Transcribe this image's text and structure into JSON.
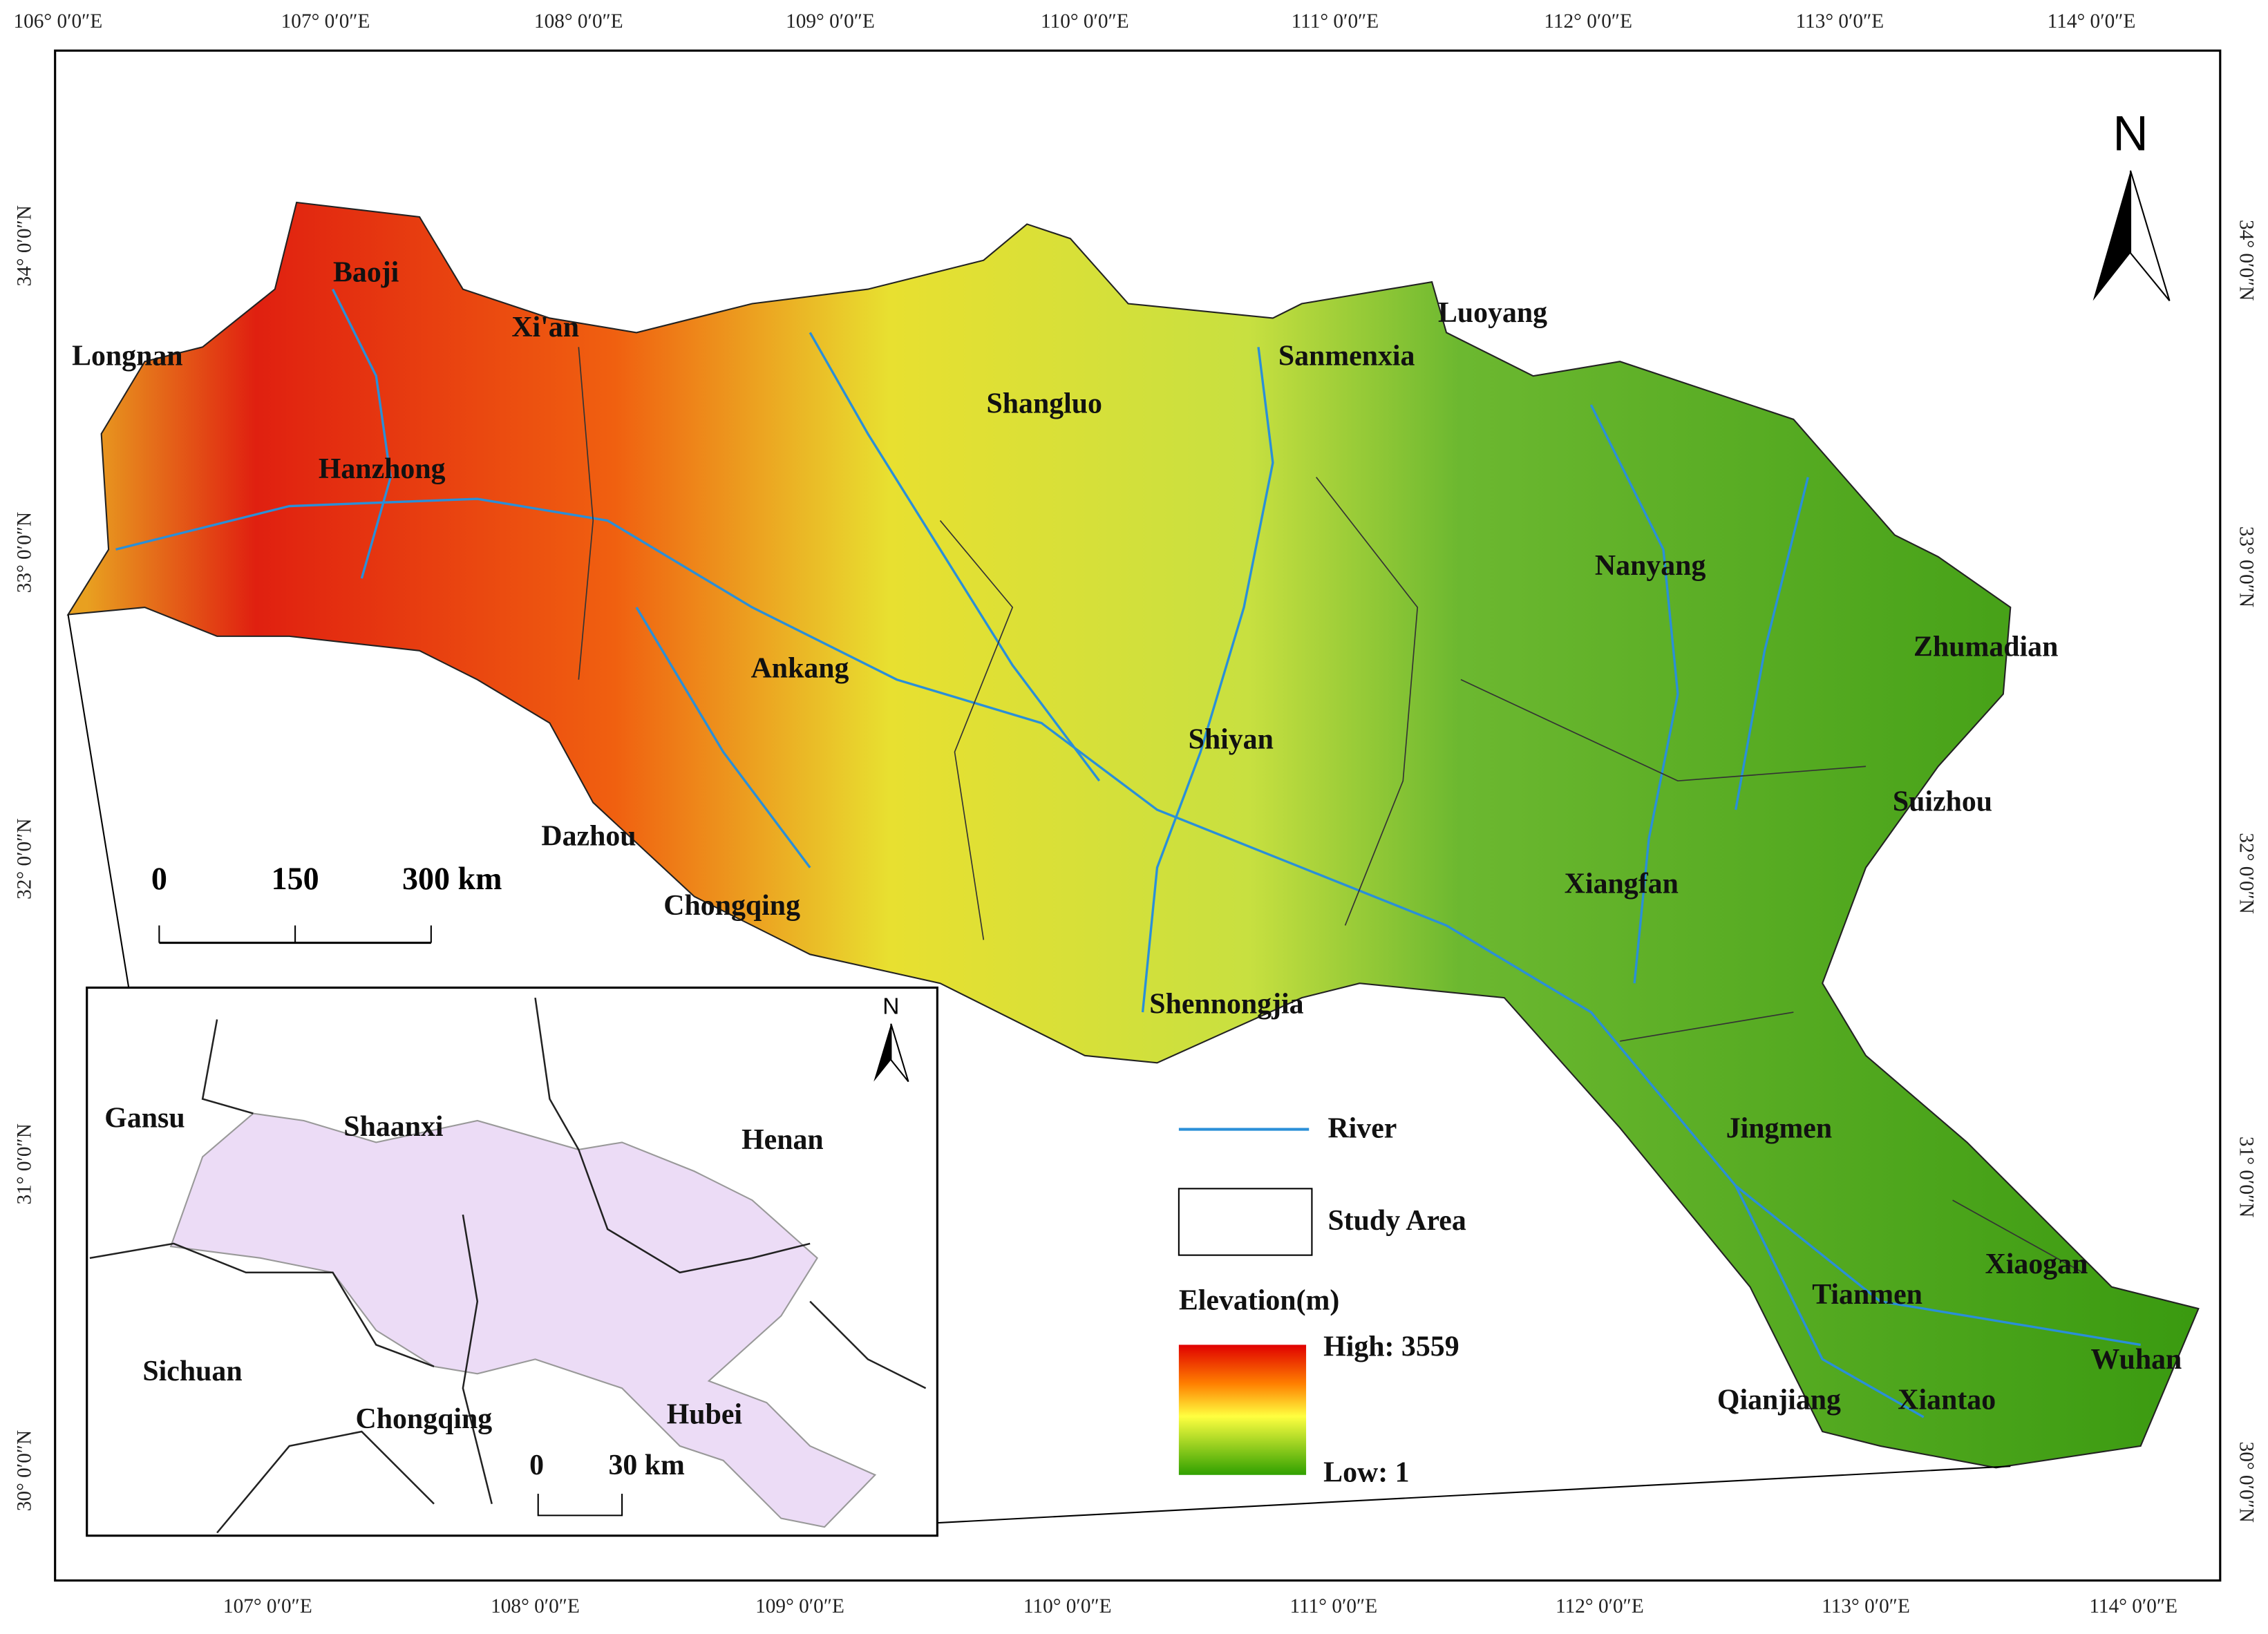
{
  "map": {
    "north": "N",
    "cities": [
      "Baoji",
      "Xi'an",
      "Longnan",
      "Hanzhong",
      "Shangluo",
      "Sanmenxia",
      "Luoyang",
      "Nanyang",
      "Zhumadian",
      "Ankang",
      "Shiyan",
      "Suizhou",
      "Dazhou",
      "Xiangfan",
      "Chongqing",
      "Shennongjia",
      "Jingmen",
      "Xiaogan",
      "Tianmen",
      "Wuhan",
      "Qianjiang",
      "Xiantao"
    ],
    "longitude_top": [
      "106° 0′0″E",
      "107° 0′0″E",
      "108° 0′0″E",
      "109° 0′0″E",
      "110° 0′0″E",
      "111° 0′0″E",
      "112° 0′0″E",
      "113° 0′0″E",
      "114° 0′0″E"
    ],
    "longitude_bottom": [
      "107° 0′0″E",
      "108° 0′0″E",
      "109° 0′0″E",
      "110° 0′0″E",
      "111° 0′0″E",
      "112° 0′0″E",
      "113° 0′0″E",
      "114° 0′0″E"
    ],
    "latitude_left": [
      "34° 0′0″N",
      "33° 0′0″N",
      "32° 0′0″N",
      "31° 0′0″N",
      "30° 0′0″N"
    ],
    "latitude_right": [
      "34° 0′0″N",
      "33° 0′0″N",
      "32° 0′0″N",
      "31° 0′0″N",
      "30° 0′0″N"
    ],
    "scale_bar": [
      "0",
      "150",
      "300 km"
    ],
    "legend": {
      "river": "River",
      "study_area": "Study Area",
      "elevation_title": "Elevation(m)",
      "high": "High: 3559",
      "low": "Low: 1"
    },
    "inset": {
      "north": "N",
      "provinces": [
        "Gansu",
        "Shaanxi",
        "Henan",
        "Sichuan",
        "Chongqing",
        "Hubei"
      ],
      "scale_bar": [
        "0",
        "30 km"
      ]
    }
  }
}
